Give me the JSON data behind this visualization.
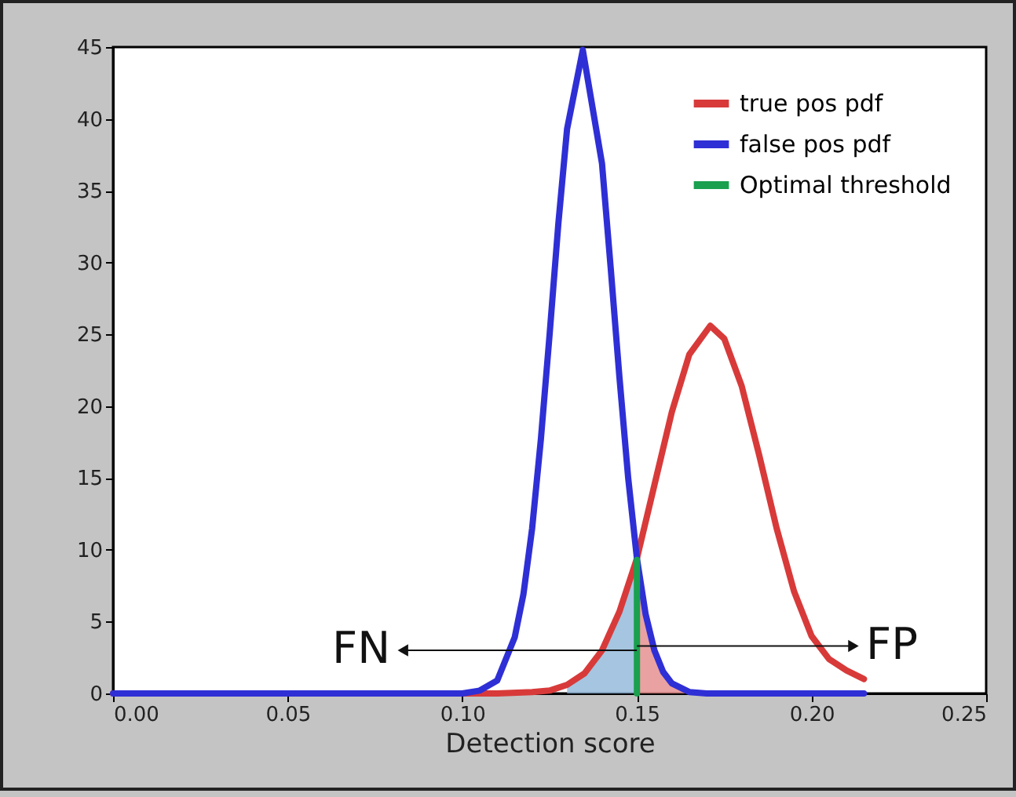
{
  "chart_data": {
    "type": "line",
    "xlabel": "Detection score",
    "xlim": [
      0,
      0.25
    ],
    "xticks": [
      {
        "value": 0,
        "label": "0.00"
      },
      0.05,
      {
        "value": 0.1,
        "label": "0.10"
      },
      0.15,
      {
        "value": 0.2,
        "label": "0.20"
      },
      0.25
    ],
    "ylim": [
      0,
      45
    ],
    "yticks": [
      0,
      5,
      10,
      15,
      20,
      25,
      30,
      35,
      40,
      45
    ],
    "grid": false,
    "legend": "top right",
    "marker": "none",
    "line_style": "solid",
    "series": [
      {
        "type": "area",
        "color": "#8fb6d8",
        "x": [
          0.13,
          0.135,
          0.14,
          0.145,
          0.15
        ],
        "values": [
          0.6,
          1.4,
          3,
          5.7,
          9.4
        ]
      },
      {
        "type": "area",
        "color": "#e58a8a",
        "x": [
          0.15,
          0.1525,
          0.155,
          0.1575,
          0.16,
          0.165
        ],
        "values": [
          9.4,
          5.5,
          3,
          1.5,
          0.7,
          0.1
        ]
      },
      {
        "name": "true pos pdf",
        "color": "#d83a3a",
        "x": [
          0,
          0.1,
          0.11,
          0.12,
          0.125,
          0.13,
          0.135,
          0.14,
          0.145,
          0.15,
          0.155,
          0.16,
          0.165,
          0.171,
          0.175,
          0.18,
          0.185,
          0.19,
          0.195,
          0.2,
          0.205,
          0.21,
          0.215
        ],
        "values": [
          0,
          0,
          0,
          0.1,
          0.2,
          0.6,
          1.4,
          3,
          5.7,
          9.4,
          14.5,
          19.6,
          23.6,
          25.6,
          24.7,
          21.4,
          16.6,
          11.5,
          7.1,
          4,
          2.4,
          1.6,
          1
        ]
      },
      {
        "name": "false pos pdf",
        "color": "#2f2fd6",
        "x": [
          0,
          0.1,
          0.105,
          0.11,
          0.115,
          0.1175,
          0.12,
          0.1225,
          0.125,
          0.1275,
          0.13,
          0.1345,
          0.14,
          0.1425,
          0.145,
          0.1475,
          0.15,
          0.1525,
          0.155,
          0.1575,
          0.16,
          0.165,
          0.17,
          0.215
        ],
        "values": [
          0,
          0,
          0.2,
          0.9,
          3.9,
          6.9,
          11.5,
          17.7,
          25,
          32.7,
          39.3,
          44.8,
          36.9,
          29.6,
          22,
          15,
          9.4,
          5.5,
          3,
          1.5,
          0.7,
          0.1,
          0,
          0
        ]
      },
      {
        "name": "Optimal threshold",
        "color": "#1aa04e",
        "x": [
          0.15,
          0.15
        ],
        "values": [
          0,
          9.3
        ]
      }
    ],
    "annotations": [
      {
        "text": "FN",
        "x": 0.083,
        "y": 3
      },
      {
        "text": "FP",
        "x": 0.212,
        "y": 3.3
      }
    ]
  }
}
